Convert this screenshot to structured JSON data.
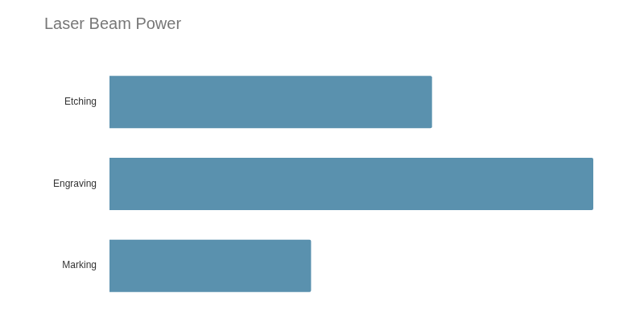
{
  "chart_data": {
    "type": "bar",
    "title": "Laser Beam Power",
    "categories": [
      "Etching",
      "Engraving",
      "Marking"
    ],
    "values": [
      80,
      120,
      50
    ],
    "color": "#5a91ae",
    "orientation": "horizontal",
    "xlim": [
      0,
      120
    ],
    "xticks": [
      0,
      40,
      80,
      120
    ],
    "grid": false,
    "tick_labels": "y"
  }
}
